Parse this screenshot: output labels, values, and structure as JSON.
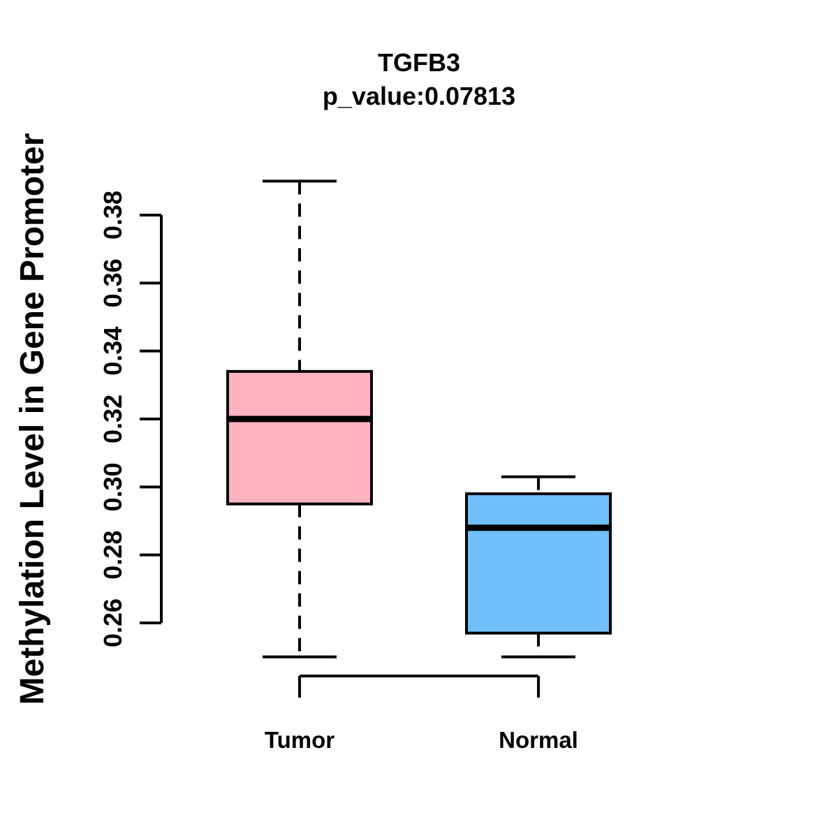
{
  "chart_data": {
    "type": "boxplot",
    "title": "TGFB3",
    "subtitle": "p_value:0.07813",
    "ylabel": "Methylation Level in Gene Promoter",
    "categories": [
      "Tumor",
      "Normal"
    ],
    "series": [
      {
        "name": "Tumor",
        "min": 0.25,
        "q1": 0.295,
        "median": 0.32,
        "q3": 0.334,
        "max": 0.39,
        "fill_color": "#FFB3C1"
      },
      {
        "name": "Normal",
        "min": 0.25,
        "q1": 0.257,
        "median": 0.288,
        "q3": 0.298,
        "max": 0.303,
        "fill_color": "#70BFF8"
      }
    ],
    "yticks": [
      0.26,
      0.28,
      0.3,
      0.32,
      0.34,
      0.36,
      0.38
    ],
    "ylim": [
      0.245,
      0.392
    ],
    "whisker_line_style": "dashed",
    "border_color": "#000000",
    "background_color": "#FFFFFF",
    "grid": false,
    "legend": "none"
  }
}
